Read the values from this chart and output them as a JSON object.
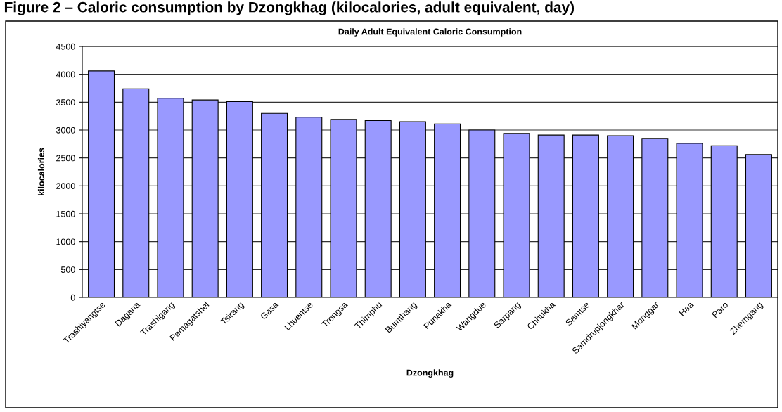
{
  "chart_data": {
    "type": "bar",
    "title": "Figure 2 – Caloric consumption by Dzongkhag (kilocalories, adult equivalent, day)",
    "subtitle": "Daily Adult Equivalent Caloric Consumption",
    "xlabel": "Dzongkhag",
    "ylabel": "kilocalories",
    "categories": [
      "Trashiyangtse",
      "Dagana",
      "Trashigang",
      "Pemagatshel",
      "Tsirang",
      "Gasa",
      "Lhuentse",
      "Trongsa",
      "Thimphu",
      "Bumthang",
      "Punakha",
      "Wangdue",
      "Sarpang",
      "Chhukha",
      "Samtse",
      "Samdrupjongkhar",
      "Monggar",
      "Haa",
      "Paro",
      "Zhemgang"
    ],
    "values": [
      4060,
      3740,
      3570,
      3540,
      3510,
      3300,
      3230,
      3190,
      3170,
      3150,
      3110,
      3000,
      2940,
      2910,
      2910,
      2900,
      2850,
      2760,
      2720,
      2560
    ],
    "color": "#9999ff",
    "ylim": [
      0,
      4500
    ],
    "yticks": [
      0,
      500,
      1000,
      1500,
      2000,
      2500,
      3000,
      3500,
      4000,
      4500
    ],
    "grid": "y"
  }
}
